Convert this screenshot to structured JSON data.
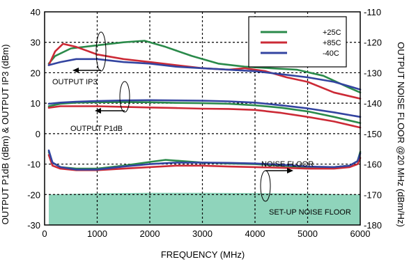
{
  "chart_data": {
    "type": "line",
    "xlabel": "FREQUENCY (MHz)",
    "ylabel_left": "OUTPUT P1dB (dBm) & OUTPUT IP3 (dBm)",
    "ylabel_right": "OUTPUT NOISE FLOOR @20 MHz (dBm/Hz)",
    "xlim": [
      0,
      6000
    ],
    "ylim_left": [
      -30,
      40
    ],
    "ylim_right": [
      -180,
      -110
    ],
    "x_ticks": [
      "0",
      "1000",
      "2000",
      "3000",
      "4000",
      "5000",
      "6000"
    ],
    "y_ticks_left": [
      "-30",
      "-20",
      "-10",
      "0",
      "10",
      "20",
      "30",
      "40"
    ],
    "y_ticks_right": [
      "-180",
      "-170",
      "-160",
      "-150",
      "-140",
      "-130",
      "-120",
      "-110"
    ],
    "grid": "dashed",
    "legend_position": "top-right",
    "legend": [
      {
        "label": "+25C",
        "color": "#2a8a4a"
      },
      {
        "label": "+85C",
        "color": "#cc2a36"
      },
      {
        "label": "-40C",
        "color": "#3344a0"
      }
    ],
    "annotations": {
      "ip3": "OUTPUT IP3",
      "p1db": "OUTPUT P1dB",
      "noise": "NOISE FLOOR",
      "setup": "SET-UP NOISE FLOOR"
    },
    "setup_noise_floor": {
      "color": "#8fd4bb",
      "x": [
        80,
        1000,
        2000,
        3000,
        4000,
        5000,
        6000
      ],
      "values": [
        -20,
        -19.6,
        -19.4,
        -19.4,
        -19.5,
        -19.7,
        -20
      ]
    },
    "series": [
      {
        "name": "+25C",
        "group": "ip3",
        "color": "#2a8a4a",
        "x": [
          80,
          200,
          500,
          1000,
          1500,
          1900,
          2300,
          2800,
          3300,
          3800,
          4300,
          4800,
          5300,
          5800,
          6000
        ],
        "values": [
          23,
          25.5,
          28,
          29,
          30,
          30.5,
          28.5,
          25.5,
          23,
          22,
          21.5,
          21,
          19,
          15,
          13.5
        ]
      },
      {
        "name": "+85C",
        "group": "ip3",
        "color": "#cc2a36",
        "x": [
          80,
          200,
          350,
          600,
          1000,
          1500,
          2000,
          2500,
          3000,
          3500,
          3800,
          4200,
          4600,
          5000,
          5500,
          6000
        ],
        "values": [
          22.5,
          27,
          29.5,
          28.5,
          26,
          24.5,
          23.5,
          22.5,
          21.5,
          21,
          21.5,
          20.5,
          18.5,
          17,
          13.5,
          11.5
        ]
      },
      {
        "name": "-40C",
        "group": "ip3",
        "color": "#3344a0",
        "x": [
          80,
          300,
          600,
          1000,
          1500,
          2000,
          2500,
          3000,
          3500,
          4000,
          4500,
          5000,
          5500,
          6000
        ],
        "values": [
          22.5,
          23.5,
          24.5,
          24.5,
          23.5,
          23,
          22,
          21.5,
          21,
          20.5,
          19.5,
          18.5,
          17,
          14.5
        ]
      },
      {
        "name": "+25C",
        "group": "p1db",
        "color": "#2a8a4a",
        "x": [
          80,
          300,
          600,
          1000,
          1500,
          2000,
          2500,
          3000,
          3500,
          4000,
          4500,
          5000,
          5500,
          6000
        ],
        "values": [
          9,
          9.8,
          10.2,
          10.3,
          10.4,
          10.3,
          10.1,
          10,
          9.8,
          9.3,
          8.5,
          7.3,
          5.5,
          3.5
        ]
      },
      {
        "name": "+85C",
        "group": "p1db",
        "color": "#cc2a36",
        "x": [
          80,
          300,
          600,
          1000,
          1500,
          2000,
          2500,
          3000,
          3500,
          4000,
          4500,
          5000,
          5500,
          6000
        ],
        "values": [
          8.5,
          9,
          9,
          9,
          8.8,
          8.6,
          8.4,
          8.2,
          8.1,
          7.8,
          6.8,
          5.5,
          4,
          2
        ]
      },
      {
        "name": "-40C",
        "group": "p1db",
        "color": "#3344a0",
        "x": [
          80,
          300,
          600,
          1000,
          1500,
          2000,
          2500,
          3000,
          3500,
          4000,
          4500,
          5000,
          5500,
          6000
        ],
        "values": [
          9.8,
          10.2,
          10.5,
          10.7,
          10.9,
          11,
          10.9,
          10.8,
          10.6,
          10.2,
          9.3,
          8.3,
          7,
          5.5
        ]
      },
      {
        "name": "+25C",
        "group": "noise",
        "color": "#2a8a4a",
        "x": [
          80,
          150,
          300,
          600,
          1000,
          1500,
          2000,
          2300,
          2600,
          3000,
          3500,
          4000,
          4500,
          5000,
          5500,
          5800,
          5950,
          6000
        ],
        "values": [
          -6,
          -9.5,
          -11,
          -11.5,
          -11.5,
          -10.5,
          -9.3,
          -8.6,
          -9,
          -9.5,
          -9.8,
          -10,
          -10.5,
          -11,
          -11,
          -10.5,
          -9,
          -6
        ]
      },
      {
        "name": "+85C",
        "group": "noise",
        "color": "#cc2a36",
        "x": [
          80,
          150,
          300,
          600,
          1000,
          1500,
          2000,
          2500,
          3000,
          3500,
          4000,
          4500,
          5000,
          5500,
          5800,
          5950,
          6000
        ],
        "values": [
          -7,
          -10.5,
          -11.5,
          -12,
          -12,
          -11.5,
          -11,
          -10.5,
          -10.5,
          -10.8,
          -11,
          -11.2,
          -11.5,
          -11.5,
          -11,
          -10,
          -8
        ]
      },
      {
        "name": "-40C",
        "group": "noise",
        "color": "#3344a0",
        "x": [
          80,
          150,
          300,
          600,
          1000,
          1500,
          2000,
          2500,
          3000,
          3500,
          4000,
          4500,
          5000,
          5500,
          5800,
          5950,
          6000
        ],
        "values": [
          -5.5,
          -9.5,
          -11,
          -11.8,
          -11.8,
          -10.8,
          -10,
          -9.5,
          -9.5,
          -9.6,
          -9.8,
          -10.2,
          -10.8,
          -11,
          -10.5,
          -9,
          -6.5
        ]
      }
    ]
  }
}
